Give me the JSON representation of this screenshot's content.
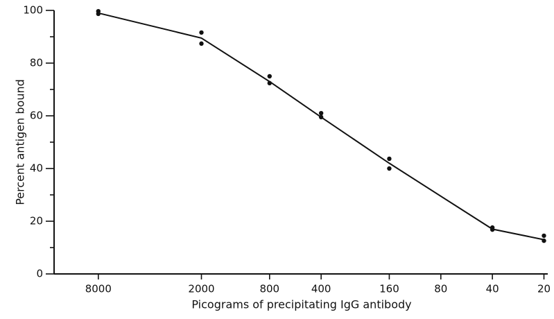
{
  "chart_data": {
    "type": "scatter",
    "xlabel": "Picograms of precipitating IgG antibody",
    "ylabel": "Percent antigen bound",
    "xscale": "log",
    "xlim": [
      14500,
      19
    ],
    "xticks": [
      8000,
      2000,
      800,
      400,
      160,
      80,
      40,
      20
    ],
    "ylim": [
      0,
      100
    ],
    "yticks": [
      0,
      20,
      40,
      60,
      80,
      100
    ],
    "yminor_ticks": [
      10,
      30,
      50,
      70,
      90
    ],
    "color": "#111111",
    "series": [
      {
        "type": "scatter",
        "x": [
          8000,
          8000,
          2000,
          2000,
          800,
          800,
          400,
          400,
          160,
          160,
          40,
          40,
          20,
          20
        ],
        "values": [
          99.7,
          98.7,
          91.6,
          87.4,
          75,
          72.4,
          61,
          59.5,
          43.7,
          40,
          17.6,
          16.8,
          14.5,
          12.6
        ]
      },
      {
        "type": "line",
        "x": [
          8000,
          2000,
          800,
          400,
          160,
          40,
          20
        ],
        "values": [
          99,
          89.5,
          73,
          59.5,
          42,
          17,
          13
        ]
      }
    ]
  }
}
